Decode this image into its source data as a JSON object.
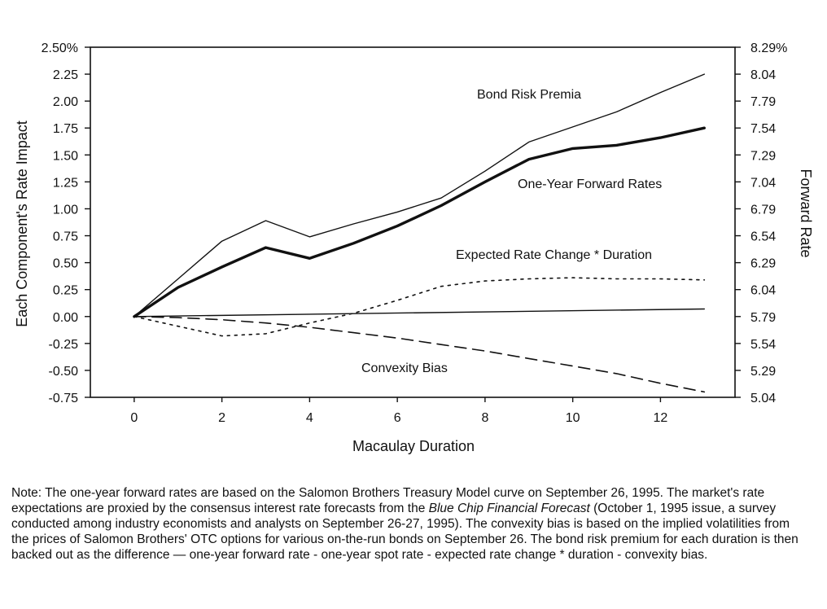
{
  "chart_data": {
    "type": "line",
    "xlabel": "Macaulay Duration",
    "ylabel_left": "Each Component's Rate Impact",
    "ylabel_right": "Forward Rate",
    "xlim": [
      -1,
      13.7
    ],
    "ylim_left": [
      -0.75,
      2.5
    ],
    "ylim_right": [
      5.04,
      8.29
    ],
    "x_ticks": [
      {
        "value": 0,
        "label": "0"
      },
      {
        "value": 2,
        "label": "2"
      },
      {
        "value": 4,
        "label": "4"
      },
      {
        "value": 6,
        "label": "6"
      },
      {
        "value": 8,
        "label": "8"
      },
      {
        "value": 10,
        "label": "10"
      },
      {
        "value": 12,
        "label": "12"
      }
    ],
    "y_ticks_left": [
      {
        "value": 2.5,
        "label": "2.50%"
      },
      {
        "value": 2.25,
        "label": "2.25"
      },
      {
        "value": 2.0,
        "label": "2.00"
      },
      {
        "value": 1.75,
        "label": "1.75"
      },
      {
        "value": 1.5,
        "label": "1.50"
      },
      {
        "value": 1.25,
        "label": "1.25"
      },
      {
        "value": 1.0,
        "label": "1.00"
      },
      {
        "value": 0.75,
        "label": "0.75"
      },
      {
        "value": 0.5,
        "label": "0.50"
      },
      {
        "value": 0.25,
        "label": "0.25"
      },
      {
        "value": 0.0,
        "label": "0.00"
      },
      {
        "value": -0.25,
        "label": "-0.25"
      },
      {
        "value": -0.5,
        "label": "-0.50"
      },
      {
        "value": -0.75,
        "label": "-0.75"
      }
    ],
    "y_ticks_right": [
      {
        "value": 8.29,
        "label": "8.29%"
      },
      {
        "value": 8.04,
        "label": "8.04"
      },
      {
        "value": 7.79,
        "label": "7.79"
      },
      {
        "value": 7.54,
        "label": "7.54"
      },
      {
        "value": 7.29,
        "label": "7.29"
      },
      {
        "value": 7.04,
        "label": "7.04"
      },
      {
        "value": 6.79,
        "label": "6.79"
      },
      {
        "value": 6.54,
        "label": "6.54"
      },
      {
        "value": 6.29,
        "label": "6.29"
      },
      {
        "value": 6.04,
        "label": "6.04"
      },
      {
        "value": 5.79,
        "label": "5.79"
      },
      {
        "value": 5.54,
        "label": "5.54"
      },
      {
        "value": 5.29,
        "label": "5.29"
      },
      {
        "value": 5.04,
        "label": "5.04"
      }
    ],
    "grid": false,
    "legend": "none",
    "series": [
      {
        "id": "bond-risk-premia",
        "label": "Bond Risk Premia",
        "style": "thin-solid",
        "x": [
          0,
          1,
          2,
          3,
          4,
          5,
          6,
          7,
          8,
          9,
          10,
          11,
          12,
          13
        ],
        "y": [
          0.0,
          0.35,
          0.7,
          0.89,
          0.74,
          0.86,
          0.97,
          1.1,
          1.35,
          1.62,
          1.76,
          1.9,
          2.08,
          2.25
        ]
      },
      {
        "id": "one-year-forward-rates",
        "label": "One-Year Forward Rates",
        "style": "thick-solid",
        "x": [
          0,
          1,
          2,
          3,
          4,
          5,
          6,
          7,
          8,
          9,
          10,
          11,
          12,
          13
        ],
        "y": [
          0.0,
          0.27,
          0.46,
          0.64,
          0.54,
          0.68,
          0.84,
          1.03,
          1.25,
          1.46,
          1.56,
          1.59,
          1.66,
          1.75
        ]
      },
      {
        "id": "expected-rate-change-duration",
        "label": "Expected Rate Change * Duration",
        "style": "dotted",
        "x": [
          0,
          1,
          2,
          3,
          4,
          5,
          6,
          7,
          8,
          9,
          10,
          11,
          12,
          13
        ],
        "y": [
          0.0,
          -0.09,
          -0.18,
          -0.16,
          -0.06,
          0.03,
          0.15,
          0.28,
          0.33,
          0.35,
          0.36,
          0.35,
          0.35,
          0.34
        ]
      },
      {
        "id": "convexity-bias",
        "label": "Convexity Bias",
        "style": "dashed",
        "x": [
          0,
          1,
          2,
          3,
          4,
          5,
          6,
          7,
          8,
          9,
          10,
          11,
          12,
          13
        ],
        "y": [
          0.0,
          -0.01,
          -0.03,
          -0.06,
          -0.1,
          -0.15,
          -0.2,
          -0.26,
          -0.32,
          -0.39,
          -0.46,
          -0.53,
          -0.62,
          -0.7
        ]
      },
      {
        "id": "zero-reference",
        "label": "",
        "style": "thin-solid",
        "x": [
          0,
          13
        ],
        "y": [
          0.0,
          0.07
        ]
      }
    ],
    "annotations": [
      {
        "text": "Bond Risk Premia",
        "series": "bond-risk-premia"
      },
      {
        "text": "One-Year Forward Rates",
        "series": "one-year-forward-rates"
      },
      {
        "text": "Expected Rate Change * Duration",
        "series": "expected-rate-change-duration"
      },
      {
        "text": "Convexity Bias",
        "series": "convexity-bias"
      }
    ]
  },
  "note": {
    "part1": "Note: The one-year forward rates are based on the Salomon Brothers Treasury Model curve on September 26, 1995. The market's rate expectations are proxied by the consensus interest rate forecasts from the ",
    "italic": "Blue Chip Financial Forecast",
    "part2": " (October 1, 1995 issue, a survey conducted among industry economists and analysts on September 26-27, 1995). The convexity bias is based on the implied volatilities from the prices of Salomon Brothers' OTC options for various on-the-run bonds on September 26. The bond risk premium for each duration is then backed out as the difference — one-year forward rate - one-year spot rate - expected rate change * duration - convexity bias."
  }
}
